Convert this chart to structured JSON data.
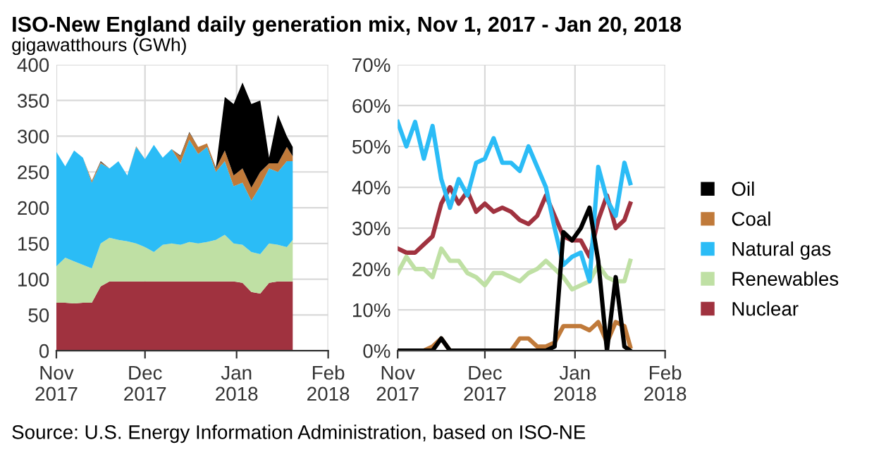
{
  "chart_data": [
    {
      "type": "area",
      "stacked": true,
      "title": "ISO-New England daily generation mix, Nov 1, 2017 - Jan 20, 2018",
      "ylabel": "gigawatthours (GWh)",
      "x": [
        "2017-11-01",
        "2017-11-04",
        "2017-11-07",
        "2017-11-10",
        "2017-11-13",
        "2017-11-16",
        "2017-11-19",
        "2017-11-22",
        "2017-11-25",
        "2017-11-28",
        "2017-12-01",
        "2017-12-04",
        "2017-12-07",
        "2017-12-10",
        "2017-12-13",
        "2017-12-16",
        "2017-12-19",
        "2017-12-22",
        "2017-12-25",
        "2017-12-28",
        "2017-12-31",
        "2018-01-03",
        "2018-01-06",
        "2018-01-09",
        "2018-01-12",
        "2018-01-15",
        "2018-01-18",
        "2018-01-20"
      ],
      "series": [
        {
          "color": "#a0323f",
          "values": [
            67,
            67,
            66,
            67,
            67,
            90,
            97,
            97,
            97,
            97,
            97,
            97,
            97,
            97,
            97,
            97,
            97,
            97,
            97,
            97,
            97,
            95,
            82,
            80,
            95,
            97,
            97,
            97
          ]
        },
        {
          "color": "#bfe0a4",
          "values": [
            51,
            63,
            59,
            53,
            48,
            60,
            61,
            58,
            56,
            53,
            48,
            41,
            51,
            53,
            51,
            55,
            53,
            55,
            58,
            65,
            53,
            53,
            56,
            55,
            55,
            51,
            48,
            58
          ]
        },
        {
          "color": "#2bbcf6",
          "values": [
            160,
            128,
            155,
            150,
            120,
            112,
            97,
            110,
            92,
            135,
            123,
            150,
            122,
            132,
            114,
            143,
            125,
            133,
            95,
            103,
            80,
            87,
            72,
            95,
            105,
            102,
            120,
            110
          ]
        },
        {
          "color": "#c07a3a",
          "values": [
            0,
            0,
            0,
            0,
            3,
            2,
            0,
            0,
            0,
            1,
            0,
            0,
            0,
            0,
            10,
            10,
            10,
            5,
            5,
            15,
            15,
            20,
            18,
            20,
            7,
            12,
            20,
            7
          ]
        },
        {
          "color": "#000000",
          "values": [
            0,
            0,
            0,
            0,
            0,
            1,
            0,
            0,
            0,
            0,
            0,
            0,
            0,
            0,
            1,
            1,
            0,
            0,
            1,
            75,
            100,
            120,
            117,
            100,
            8,
            68,
            15,
            13
          ]
        }
      ],
      "xlim": [
        "2017-11-01",
        "2018-02-01"
      ],
      "xticks": [
        {
          "value": "2017-11-01",
          "label": "Nov\n2017"
        },
        {
          "value": "2017-12-01",
          "label": "Dec\n2017"
        },
        {
          "value": "2018-01-01",
          "label": "Jan\n2018"
        },
        {
          "value": "2018-02-01",
          "label": "Feb\n2018"
        }
      ],
      "ylim": [
        0,
        400
      ],
      "yticks": [
        0,
        50,
        100,
        150,
        200,
        250,
        300,
        350,
        400
      ],
      "grid": true,
      "annotations": [
        "Source: U.S. Energy Information Administration, based on ISO-NE"
      ]
    },
    {
      "type": "line",
      "x": [
        "2017-11-01",
        "2017-11-04",
        "2017-11-07",
        "2017-11-10",
        "2017-11-13",
        "2017-11-16",
        "2017-11-19",
        "2017-11-22",
        "2017-11-25",
        "2017-11-28",
        "2017-12-01",
        "2017-12-04",
        "2017-12-07",
        "2017-12-10",
        "2017-12-13",
        "2017-12-16",
        "2017-12-19",
        "2017-12-22",
        "2017-12-25",
        "2017-12-28",
        "2017-12-31",
        "2018-01-03",
        "2018-01-06",
        "2018-01-09",
        "2018-01-12",
        "2018-01-15",
        "2018-01-18",
        "2018-01-20"
      ],
      "series": [
        {
          "name": "Oil",
          "color": "#000000",
          "values": [
            0,
            0,
            0,
            0,
            0,
            3,
            0,
            0,
            0,
            0,
            0,
            0,
            0,
            0,
            0,
            0,
            0,
            0,
            1,
            29,
            27,
            30,
            35,
            22,
            0,
            18,
            1,
            0
          ]
        },
        {
          "name": "Coal",
          "color": "#c07a3a",
          "values": [
            0,
            0,
            0,
            0,
            1,
            3,
            0,
            0,
            0,
            0,
            0,
            0,
            0,
            0,
            3,
            3,
            1,
            1,
            2,
            6,
            6,
            6,
            5,
            7,
            2,
            7,
            6,
            1
          ]
        },
        {
          "name": "Natural gas",
          "color": "#2bbcf6",
          "values": [
            56,
            50,
            56,
            47,
            55,
            42,
            35,
            42,
            38,
            46,
            47,
            52,
            46,
            46,
            44,
            50,
            45,
            40,
            30,
            21,
            23,
            24,
            17,
            45,
            37,
            33,
            46,
            41
          ]
        },
        {
          "name": "Renewables",
          "color": "#bfe0a4",
          "values": [
            19,
            23,
            20,
            20,
            18,
            25,
            22,
            22,
            19,
            18,
            16,
            19,
            19,
            18,
            17,
            19,
            20,
            22,
            20,
            18,
            15,
            16,
            17,
            21,
            18,
            17,
            17,
            22
          ]
        },
        {
          "name": "Nuclear",
          "color": "#a0323f",
          "values": [
            25,
            24,
            24,
            26,
            28,
            36,
            40,
            36,
            39,
            34,
            36,
            34,
            35,
            34,
            32,
            31,
            33,
            38,
            33,
            28,
            27,
            27,
            23,
            32,
            38,
            30,
            32,
            36
          ]
        }
      ],
      "xlim": [
        "2017-11-01",
        "2018-02-01"
      ],
      "xticks": [
        {
          "value": "2017-11-01",
          "label": "Nov\n2017"
        },
        {
          "value": "2017-12-01",
          "label": "Dec\n2017"
        },
        {
          "value": "2018-01-01",
          "label": "Jan\n2018"
        },
        {
          "value": "2018-02-01",
          "label": "Feb\n2018"
        }
      ],
      "ylim": [
        0,
        70
      ],
      "yticks": [
        {
          "value": 0,
          "label": "0%"
        },
        {
          "value": 10,
          "label": "10%"
        },
        {
          "value": 20,
          "label": "20%"
        },
        {
          "value": 30,
          "label": "30%"
        },
        {
          "value": 40,
          "label": "40%"
        },
        {
          "value": 50,
          "label": "50%"
        },
        {
          "value": 60,
          "label": "60%"
        },
        {
          "value": 70,
          "label": "70%"
        }
      ],
      "grid": true,
      "legend": "right"
    }
  ]
}
